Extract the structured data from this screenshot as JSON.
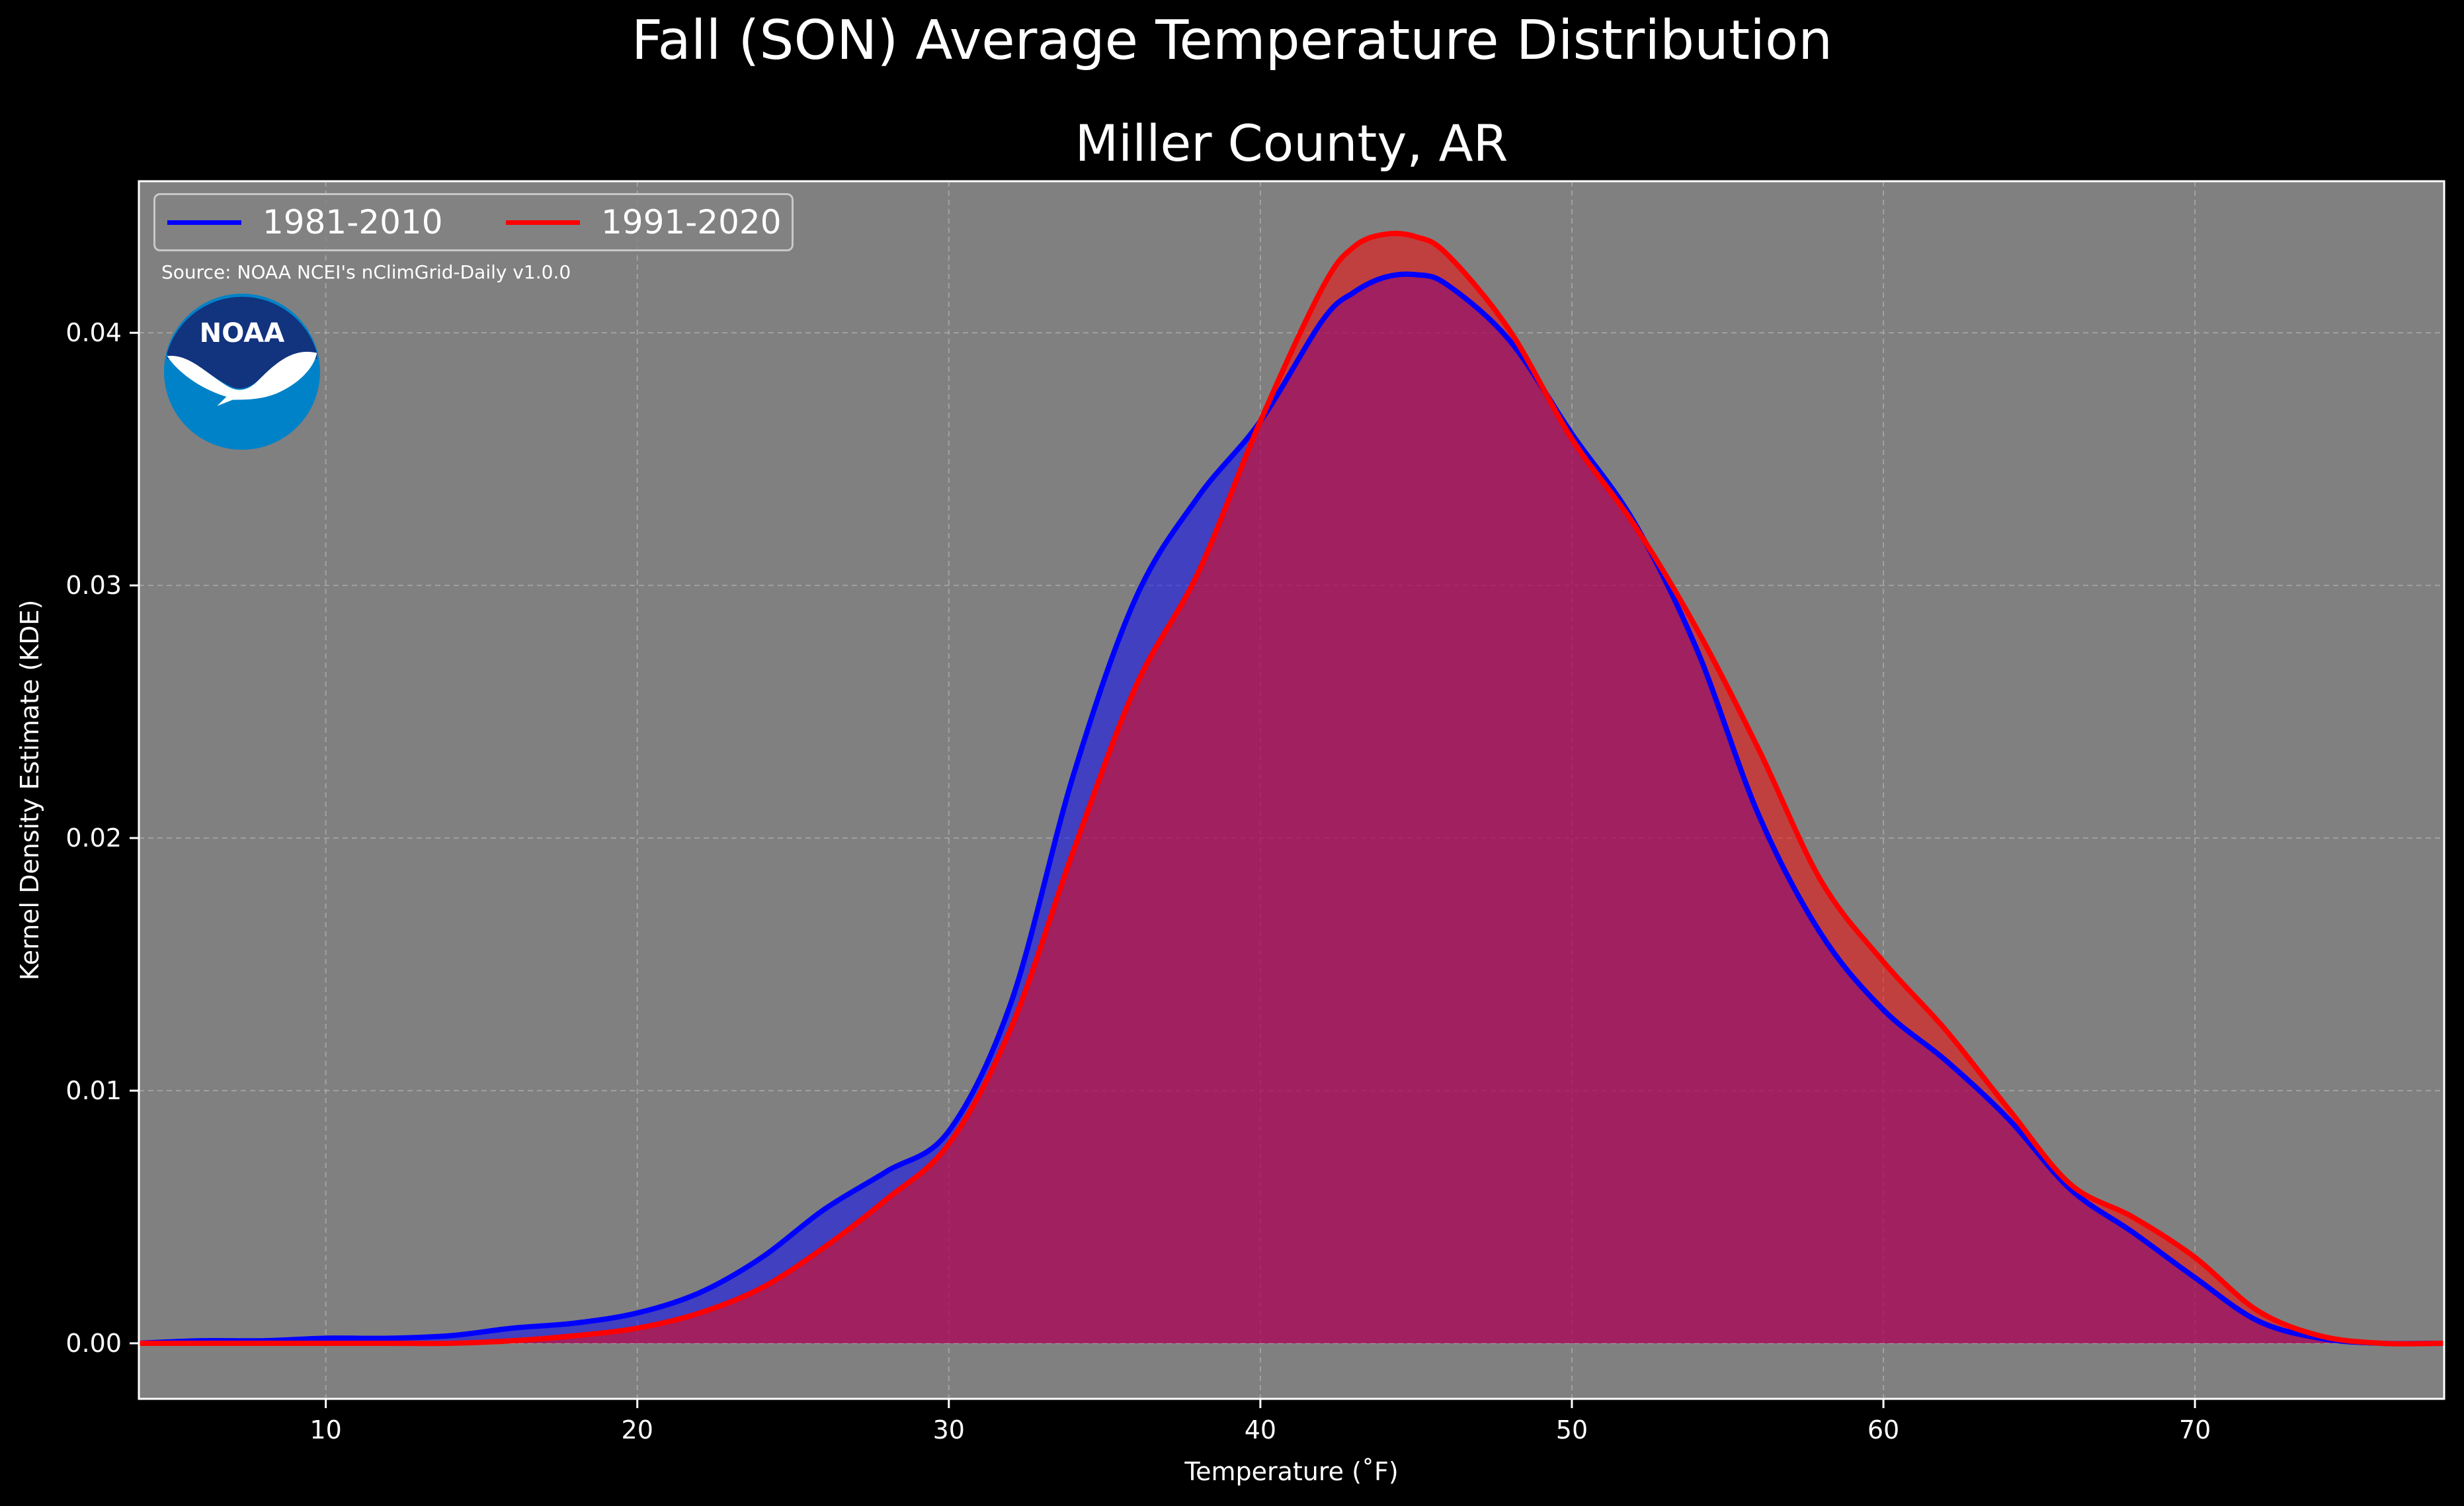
{
  "title": "Fall (SON) Average Temperature Distribution",
  "chart_data": {
    "type": "area",
    "title": "Miller County, AR",
    "xlabel": "Temperature (˚F)",
    "ylabel": "Kernel Density Estimate (KDE)",
    "xlim": [
      4,
      78
    ],
    "ylim": [
      -0.0022,
      0.046
    ],
    "xticks": [
      10,
      20,
      30,
      40,
      50,
      60,
      70
    ],
    "yticks": [
      0.0,
      0.01,
      0.02,
      0.03,
      0.04
    ],
    "ytick_labels": [
      "0.00",
      "0.01",
      "0.02",
      "0.03",
      "0.04"
    ],
    "grid": true,
    "legend_position": "top-left",
    "source": "Source: NOAA NCEI's nClimGrid-Daily v1.0.0",
    "series": [
      {
        "name": "1981-2010",
        "color": "#0000ff",
        "fill": "rgba(0,0,255,0.5)",
        "x": [
          4,
          6,
          8,
          10,
          12,
          14,
          16,
          18,
          20,
          22,
          24,
          26,
          28,
          30,
          32,
          34,
          36,
          38,
          40,
          42,
          43,
          44,
          45,
          46,
          48,
          50,
          52,
          54,
          56,
          58,
          60,
          62,
          64,
          66,
          68,
          70,
          72,
          74,
          76,
          78
        ],
        "y": [
          0.0,
          0.0001,
          0.0001,
          0.0002,
          0.0002,
          0.0003,
          0.0006,
          0.0008,
          0.0012,
          0.002,
          0.0034,
          0.0053,
          0.0068,
          0.0084,
          0.0135,
          0.0225,
          0.0295,
          0.0335,
          0.0365,
          0.0405,
          0.0416,
          0.0422,
          0.0423,
          0.0419,
          0.0397,
          0.036,
          0.0325,
          0.0275,
          0.0209,
          0.0162,
          0.0132,
          0.0112,
          0.0089,
          0.0061,
          0.0044,
          0.0026,
          0.0009,
          0.0002,
          0.0,
          0.0
        ]
      },
      {
        "name": "1991-2020",
        "color": "#ff0000",
        "fill": "rgba(255,0,0,0.5)",
        "x": [
          4,
          6,
          8,
          10,
          12,
          14,
          16,
          18,
          20,
          22,
          24,
          26,
          28,
          30,
          32,
          34,
          36,
          38,
          40,
          42,
          43,
          44,
          45,
          46,
          48,
          50,
          52,
          54,
          56,
          58,
          60,
          62,
          64,
          66,
          68,
          70,
          72,
          74,
          76,
          78
        ],
        "y": [
          0.0,
          0.0,
          0.0,
          0.0,
          0.0,
          0.0,
          0.0001,
          0.0003,
          0.0006,
          0.0012,
          0.0022,
          0.0038,
          0.0057,
          0.0079,
          0.0125,
          0.0195,
          0.026,
          0.0305,
          0.0365,
          0.0418,
          0.0434,
          0.0439,
          0.0438,
          0.0431,
          0.0401,
          0.0358,
          0.0324,
          0.0283,
          0.0235,
          0.0183,
          0.0151,
          0.0124,
          0.0093,
          0.0063,
          0.005,
          0.0034,
          0.0013,
          0.0003,
          0.0,
          0.0
        ]
      }
    ]
  },
  "logo": {
    "text": "NOAA",
    "colors": {
      "outer": "#0082c8",
      "inner": "#12337d",
      "bird": "#ffffff"
    }
  }
}
